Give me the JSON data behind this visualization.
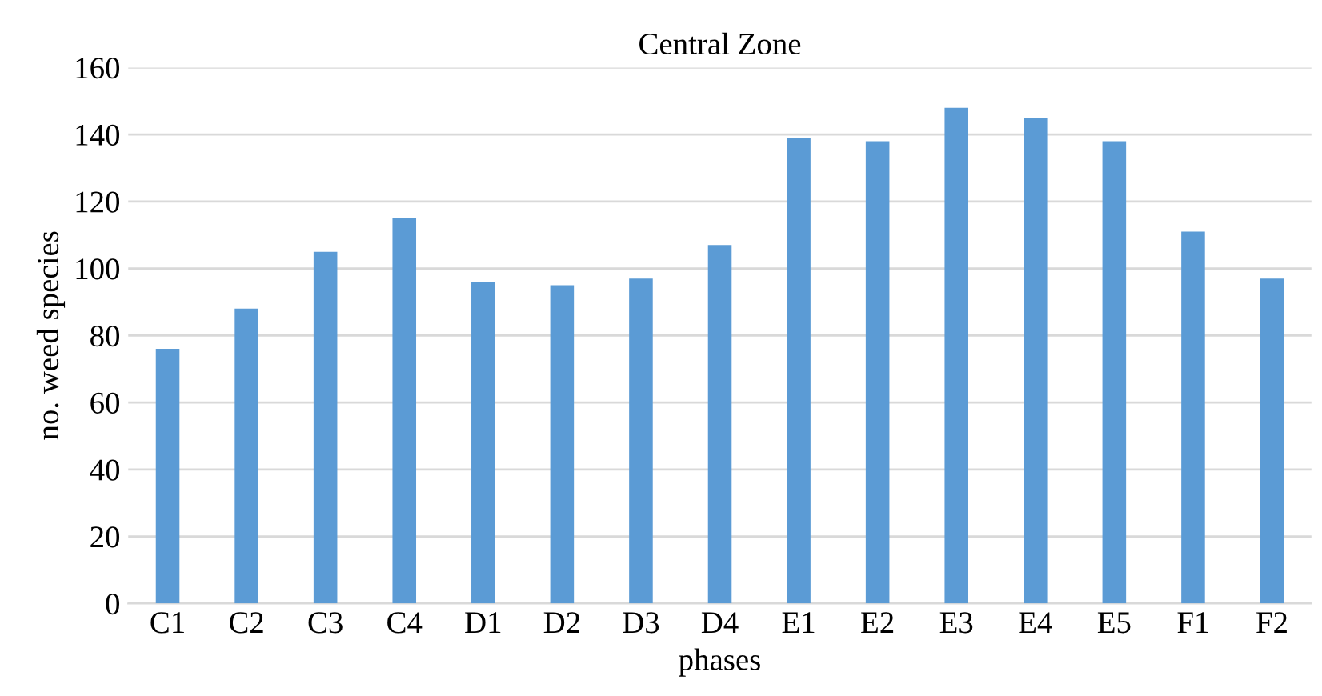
{
  "chart_data": {
    "type": "bar",
    "title": "Central Zone",
    "xlabel": "phases",
    "ylabel": "no. weed species",
    "categories": [
      "C1",
      "C2",
      "C3",
      "C4",
      "D1",
      "D2",
      "D3",
      "D4",
      "E1",
      "E2",
      "E3",
      "E4",
      "E5",
      "F1",
      "F2"
    ],
    "values": [
      76,
      88,
      105,
      115,
      96,
      95,
      97,
      107,
      139,
      138,
      148,
      145,
      138,
      111,
      97
    ],
    "color": "#5b9bd5",
    "ylim": [
      0,
      160
    ],
    "yticks": [
      0,
      20,
      40,
      60,
      80,
      100,
      120,
      140,
      160
    ],
    "grid": "y"
  }
}
